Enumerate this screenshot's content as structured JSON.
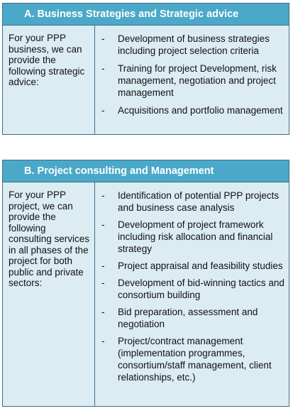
{
  "section_a": {
    "title": "A.  Business Strategies and  Strategic advice",
    "intro": "For your PPP business, we can provide the following strategic advice:",
    "items": [
      "Development of business strategies including project selection criteria",
      "Training for project Development, risk management, negotiation  and project management",
      "Acquisitions and portfolio management"
    ]
  },
  "section_b": {
    "title": "B.  Project consulting and Management",
    "intro": "For your PPP project, we can provide the following consulting services in all phases of the project for both public and private sectors:",
    "items": [
      "Identification of potential PPP projects and business case analysis",
      "Development of project framework including risk allocation and financial strategy",
      "Project appraisal and feasibility studies",
      "Development of bid-winning tactics and consortium building",
      "Bid preparation,  assessment and negotiation",
      "Project/contract management (implementation programmes, consortium/staff management, client relationships,  etc.)"
    ]
  },
  "bullet_symbol": "-",
  "colors": {
    "header_bg": "#4aa9c8",
    "body_bg": "#dcecf3",
    "border": "#3c6f86"
  }
}
